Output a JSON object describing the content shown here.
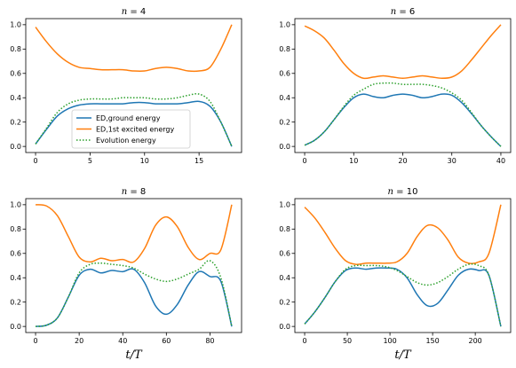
{
  "chart_data": [
    {
      "type": "line",
      "title": "n = 4",
      "xlabel": "",
      "xlim": [
        -0.9,
        18.9
      ],
      "ylim": [
        -0.05,
        1.05
      ],
      "xticks": [
        0,
        5,
        10,
        15
      ],
      "yticks": [
        0.0,
        0.2,
        0.4,
        0.6,
        0.8,
        1.0
      ],
      "legend": "center",
      "series": [
        {
          "name": "ED,ground energy",
          "color": "#1f77b4",
          "style": "solid",
          "x": [
            0,
            1,
            2,
            3,
            4,
            5,
            6,
            7,
            8,
            9,
            10,
            11,
            12,
            13,
            14,
            15,
            16,
            17,
            18
          ],
          "y": [
            0.02,
            0.14,
            0.25,
            0.31,
            0.34,
            0.35,
            0.35,
            0.35,
            0.35,
            0.36,
            0.36,
            0.35,
            0.35,
            0.35,
            0.36,
            0.37,
            0.33,
            0.2,
            0.0
          ]
        },
        {
          "name": "ED,1st excited energy",
          "color": "#ff7f0e",
          "style": "solid",
          "x": [
            0,
            1,
            2,
            3,
            4,
            5,
            6,
            7,
            8,
            9,
            10,
            11,
            12,
            13,
            14,
            15,
            16,
            17,
            18
          ],
          "y": [
            0.98,
            0.86,
            0.76,
            0.69,
            0.65,
            0.64,
            0.63,
            0.63,
            0.63,
            0.62,
            0.62,
            0.64,
            0.65,
            0.64,
            0.62,
            0.62,
            0.65,
            0.8,
            1.0
          ]
        },
        {
          "name": "Evolution energy",
          "color": "#2ca02c",
          "style": "dotted",
          "x": [
            0,
            1,
            2,
            3,
            4,
            5,
            6,
            7,
            8,
            9,
            10,
            11,
            12,
            13,
            14,
            15,
            16,
            17,
            18
          ],
          "y": [
            0.02,
            0.15,
            0.28,
            0.35,
            0.38,
            0.39,
            0.39,
            0.39,
            0.4,
            0.4,
            0.4,
            0.39,
            0.39,
            0.4,
            0.42,
            0.43,
            0.37,
            0.2,
            0.0
          ]
        }
      ]
    },
    {
      "type": "line",
      "title": "n = 6",
      "xlabel": "",
      "xlim": [
        -2,
        42
      ],
      "ylim": [
        -0.05,
        1.05
      ],
      "xticks": [
        0,
        10,
        20,
        30,
        40
      ],
      "yticks": [
        0.0,
        0.2,
        0.4,
        0.6,
        0.8,
        1.0
      ],
      "series": [
        {
          "name": "ED,ground energy",
          "color": "#1f77b4",
          "style": "solid",
          "x": [
            0,
            2,
            4,
            6,
            8,
            10,
            12,
            14,
            16,
            18,
            20,
            22,
            24,
            26,
            28,
            30,
            32,
            34,
            36,
            38,
            40
          ],
          "y": [
            0.01,
            0.05,
            0.12,
            0.22,
            0.32,
            0.4,
            0.43,
            0.41,
            0.4,
            0.42,
            0.43,
            0.42,
            0.4,
            0.41,
            0.43,
            0.42,
            0.36,
            0.27,
            0.17,
            0.08,
            0.0
          ]
        },
        {
          "name": "ED,1st excited energy",
          "color": "#ff7f0e",
          "style": "solid",
          "x": [
            0,
            2,
            4,
            6,
            8,
            10,
            12,
            14,
            16,
            18,
            20,
            22,
            24,
            26,
            28,
            30,
            32,
            34,
            36,
            38,
            40
          ],
          "y": [
            0.99,
            0.95,
            0.89,
            0.79,
            0.68,
            0.6,
            0.56,
            0.57,
            0.58,
            0.57,
            0.56,
            0.57,
            0.58,
            0.57,
            0.56,
            0.57,
            0.62,
            0.71,
            0.81,
            0.91,
            1.0
          ]
        },
        {
          "name": "Evolution energy",
          "color": "#2ca02c",
          "style": "dotted",
          "x": [
            0,
            2,
            4,
            6,
            8,
            10,
            12,
            14,
            16,
            18,
            20,
            22,
            24,
            26,
            28,
            30,
            32,
            34,
            36,
            38,
            40
          ],
          "y": [
            0.01,
            0.05,
            0.12,
            0.22,
            0.33,
            0.42,
            0.47,
            0.51,
            0.52,
            0.52,
            0.51,
            0.51,
            0.51,
            0.5,
            0.48,
            0.44,
            0.38,
            0.28,
            0.17,
            0.08,
            0.0
          ]
        }
      ]
    },
    {
      "type": "line",
      "title": "n = 8",
      "xlabel": "t/T",
      "xlim": [
        -4.5,
        94.5
      ],
      "ylim": [
        -0.05,
        1.05
      ],
      "xticks": [
        0,
        20,
        40,
        60,
        80
      ],
      "yticks": [
        0.0,
        0.2,
        0.4,
        0.6,
        0.8,
        1.0
      ],
      "series": [
        {
          "name": "ED,ground energy",
          "color": "#1f77b4",
          "style": "solid",
          "x": [
            0,
            5,
            10,
            15,
            20,
            25,
            30,
            35,
            40,
            45,
            50,
            55,
            60,
            65,
            70,
            75,
            80,
            85,
            90
          ],
          "y": [
            0.0,
            0.01,
            0.07,
            0.24,
            0.42,
            0.47,
            0.44,
            0.46,
            0.45,
            0.47,
            0.36,
            0.17,
            0.1,
            0.18,
            0.34,
            0.45,
            0.41,
            0.37,
            0.0
          ]
        },
        {
          "name": "ED,1st excited energy",
          "color": "#ff7f0e",
          "style": "solid",
          "x": [
            0,
            5,
            10,
            15,
            20,
            25,
            30,
            35,
            40,
            45,
            50,
            55,
            60,
            65,
            70,
            75,
            80,
            85,
            90
          ],
          "y": [
            1.0,
            0.99,
            0.91,
            0.74,
            0.57,
            0.53,
            0.56,
            0.54,
            0.55,
            0.53,
            0.64,
            0.83,
            0.9,
            0.82,
            0.65,
            0.55,
            0.6,
            0.63,
            1.0
          ]
        },
        {
          "name": "Evolution energy",
          "color": "#2ca02c",
          "style": "dotted",
          "x": [
            0,
            5,
            10,
            15,
            20,
            25,
            30,
            35,
            40,
            45,
            50,
            55,
            60,
            65,
            70,
            75,
            80,
            85,
            90
          ],
          "y": [
            0.0,
            0.01,
            0.07,
            0.24,
            0.44,
            0.51,
            0.52,
            0.51,
            0.5,
            0.48,
            0.43,
            0.39,
            0.37,
            0.39,
            0.43,
            0.47,
            0.54,
            0.4,
            0.0
          ]
        }
      ]
    },
    {
      "type": "line",
      "title": "n = 10",
      "xlabel": "t/T",
      "xlim": [
        -11.5,
        241.5
      ],
      "ylim": [
        -0.05,
        1.05
      ],
      "xticks": [
        0,
        50,
        100,
        150,
        200
      ],
      "yticks": [
        0.0,
        0.2,
        0.4,
        0.6,
        0.8,
        1.0
      ],
      "series": [
        {
          "name": "ED,ground energy",
          "color": "#1f77b4",
          "style": "solid",
          "x": [
            0,
            12,
            24,
            36,
            48,
            60,
            72,
            84,
            96,
            108,
            120,
            132,
            144,
            156,
            168,
            180,
            192,
            204,
            216,
            230
          ],
          "y": [
            0.02,
            0.12,
            0.24,
            0.37,
            0.46,
            0.48,
            0.47,
            0.48,
            0.48,
            0.47,
            0.4,
            0.26,
            0.17,
            0.19,
            0.3,
            0.42,
            0.47,
            0.46,
            0.42,
            0.0
          ]
        },
        {
          "name": "ED,1st excited energy",
          "color": "#ff7f0e",
          "style": "solid",
          "x": [
            0,
            12,
            24,
            36,
            48,
            60,
            72,
            84,
            96,
            108,
            120,
            132,
            144,
            156,
            168,
            180,
            192,
            204,
            216,
            230
          ],
          "y": [
            0.98,
            0.89,
            0.77,
            0.64,
            0.54,
            0.51,
            0.52,
            0.52,
            0.52,
            0.53,
            0.6,
            0.74,
            0.83,
            0.81,
            0.71,
            0.57,
            0.52,
            0.53,
            0.6,
            1.0
          ]
        },
        {
          "name": "Evolution energy",
          "color": "#2ca02c",
          "style": "dotted",
          "x": [
            0,
            12,
            24,
            36,
            48,
            60,
            72,
            84,
            96,
            108,
            120,
            132,
            144,
            156,
            168,
            180,
            192,
            204,
            216,
            230
          ],
          "y": [
            0.02,
            0.12,
            0.24,
            0.37,
            0.47,
            0.5,
            0.5,
            0.5,
            0.49,
            0.46,
            0.41,
            0.36,
            0.34,
            0.36,
            0.41,
            0.47,
            0.51,
            0.5,
            0.42,
            0.0
          ]
        }
      ]
    }
  ]
}
